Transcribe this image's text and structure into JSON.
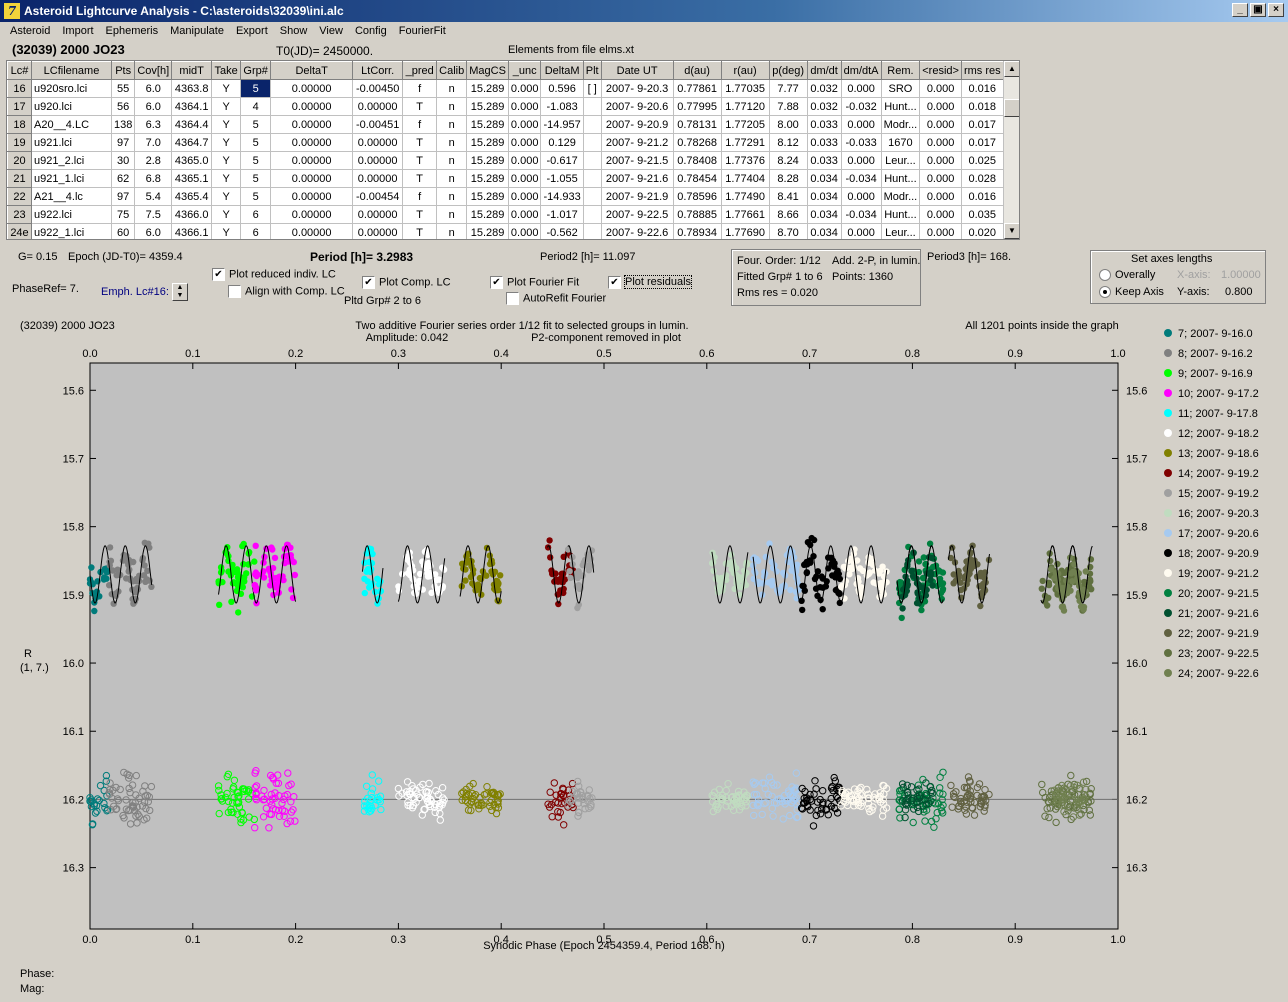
{
  "window": {
    "title": "Asteroid Lightcurve Analysis - C:\\asteroids\\32039\\ini.alc",
    "icon_letter": "7",
    "minimize": "_",
    "restore": "▣",
    "close": "×"
  },
  "menu": [
    "Asteroid",
    "Import",
    "Ephemeris",
    "Manipulate",
    "Export",
    "Show",
    "View",
    "Config",
    "FourierFit"
  ],
  "header": {
    "object": "(32039) 2000 JO23",
    "t0": "T0(JD)= 2450000.",
    "elements": "Elements from file elms.xt"
  },
  "table": {
    "columns": [
      "Lc#",
      "LCfilename",
      "Pts",
      "Cov[h]",
      "midT",
      "Take",
      "Grp#",
      "DeltaT",
      "LtCorr.",
      "_pred",
      "Calib",
      "MagCS",
      "_unc",
      "DeltaM",
      "Plt",
      "Date UT",
      "d(au)",
      "r(au)",
      "p(deg)",
      "dm/dt",
      "dm/dtA",
      "Rem.",
      "<resid>",
      "rms res"
    ],
    "rows": [
      [
        "16",
        "u920sro.lci",
        "55",
        "6.0",
        "4363.8",
        "Y",
        "5",
        "0.00000",
        "-0.00450",
        "f",
        "n",
        "15.289",
        "0.000",
        "0.596",
        "[ ]",
        "2007- 9-20.3",
        "0.77861",
        "1.77035",
        "7.77",
        "0.032",
        "0.000",
        "SRO",
        "0.000",
        "0.016"
      ],
      [
        "17",
        "u920.lci",
        "56",
        "6.0",
        "4364.1",
        "Y",
        "4",
        "0.00000",
        "0.00000",
        "T",
        "n",
        "15.289",
        "0.000",
        "-1.083",
        "",
        "2007- 9-20.6",
        "0.77995",
        "1.77120",
        "7.88",
        "0.032",
        "-0.032",
        "Hunt...",
        "0.000",
        "0.018"
      ],
      [
        "18",
        "A20__4.LC",
        "138",
        "6.3",
        "4364.4",
        "Y",
        "5",
        "0.00000",
        "-0.00451",
        "f",
        "n",
        "15.289",
        "0.000",
        "-14.957",
        "",
        "2007- 9-20.9",
        "0.78131",
        "1.77205",
        "8.00",
        "0.033",
        "0.000",
        "Modr...",
        "0.000",
        "0.017"
      ],
      [
        "19",
        "u921.lci",
        "97",
        "7.0",
        "4364.7",
        "Y",
        "5",
        "0.00000",
        "0.00000",
        "T",
        "n",
        "15.289",
        "0.000",
        "0.129",
        "",
        "2007- 9-21.2",
        "0.78268",
        "1.77291",
        "8.12",
        "0.033",
        "-0.033",
        "1670",
        "0.000",
        "0.017"
      ],
      [
        "20",
        "u921_2.lci",
        "30",
        "2.8",
        "4365.0",
        "Y",
        "5",
        "0.00000",
        "0.00000",
        "T",
        "n",
        "15.289",
        "0.000",
        "-0.617",
        "",
        "2007- 9-21.5",
        "0.78408",
        "1.77376",
        "8.24",
        "0.033",
        "0.000",
        "Leur...",
        "0.000",
        "0.025"
      ],
      [
        "21",
        "u921_1.lci",
        "62",
        "6.8",
        "4365.1",
        "Y",
        "5",
        "0.00000",
        "0.00000",
        "T",
        "n",
        "15.289",
        "0.000",
        "-1.055",
        "",
        "2007- 9-21.6",
        "0.78454",
        "1.77404",
        "8.28",
        "0.034",
        "-0.034",
        "Hunt...",
        "0.000",
        "0.028"
      ],
      [
        "22",
        "A21__4.lc",
        "97",
        "5.4",
        "4365.4",
        "Y",
        "5",
        "0.00000",
        "-0.00454",
        "f",
        "n",
        "15.289",
        "0.000",
        "-14.933",
        "",
        "2007- 9-21.9",
        "0.78596",
        "1.77490",
        "8.41",
        "0.034",
        "0.000",
        "Modr...",
        "0.000",
        "0.016"
      ],
      [
        "23",
        "u922.lci",
        "75",
        "7.5",
        "4366.0",
        "Y",
        "6",
        "0.00000",
        "0.00000",
        "T",
        "n",
        "15.289",
        "0.000",
        "-1.017",
        "",
        "2007- 9-22.5",
        "0.78885",
        "1.77661",
        "8.66",
        "0.034",
        "-0.034",
        "Hunt...",
        "0.000",
        "0.035"
      ],
      [
        "24e",
        "u922_1.lci",
        "60",
        "6.0",
        "4366.1",
        "Y",
        "6",
        "0.00000",
        "0.00000",
        "T",
        "n",
        "15.289",
        "0.000",
        "-0.562",
        "",
        "2007- 9-22.6",
        "0.78934",
        "1.77690",
        "8.70",
        "0.034",
        "0.000",
        "Leur...",
        "0.000",
        "0.020"
      ]
    ]
  },
  "params": {
    "g": "G= 0.15",
    "epoch": "Epoch (JD-T0)= 4359.4",
    "period": "Period [h]= 3.2983",
    "period2": "Period2 [h]= 11.097",
    "period3": "Period3 [h]= 168.",
    "phase_ref": "PhaseRef= 7.",
    "emph": "Emph. Lc#16:",
    "plot_reduced": "Plot reduced indiv. LC",
    "align": "Align with Comp. LC",
    "plot_comp": "Plot Comp. LC",
    "pltd_grp": "Pltd Grp#  2  to  6",
    "plot_fourier": "Plot Fourier Fit",
    "autorefit": "AutoRefit Fourier",
    "plot_residuals": "Plot residuals",
    "check": "✔"
  },
  "fourier_info": {
    "order": "Four. Order:  1/12",
    "add": "Add. 2-P, in lumin.",
    "fitted": "Fitted Grp# 1 to 6",
    "points": "Points: 1360",
    "rms": "Rms res     = 0.020"
  },
  "axes_box": {
    "title": "Set axes lengths",
    "overally": "Overally",
    "keep": "Keep Axis",
    "xaxis_label": "X-axis:",
    "xaxis_val": "1.00000",
    "yaxis_label": "Y-axis:",
    "yaxis_val": "0.800"
  },
  "chart_data": {
    "type": "scatter",
    "object_label": "(32039) 2000 JO23",
    "title": "Two additive Fourier series order 1/12 fit to selected groups in lumin.",
    "amplitude": "Amplitude: 0.042",
    "p2note": "P2-component removed in plot",
    "points_note": "All 1201 points inside the graph",
    "xlabel": "Synodic Phase (Epoch 2454359.4, Period 168. h)",
    "ylabel": "R",
    "ylabel2": "(1, 7.)",
    "xlim": [
      0,
      1
    ],
    "ylim": [
      15.56,
      16.39
    ],
    "y_inverted": true,
    "x_ticks": [
      "0.0",
      "0.1",
      "0.2",
      "0.3",
      "0.4",
      "0.5",
      "0.6",
      "0.7",
      "0.8",
      "0.9",
      "1.0"
    ],
    "y_ticks": [
      "15.6",
      "15.7",
      "15.8",
      "15.9",
      "16.0",
      "16.1",
      "16.2",
      "16.3"
    ],
    "curve_level": 15.87,
    "residual_level": 16.2,
    "series": [
      {
        "name": "7; 2007- 9-16.0",
        "color": "#007b7b",
        "x": [
          0.0,
          0.018
        ],
        "mag": 15.88,
        "spread": 0.05
      },
      {
        "name": "8; 2007- 9-16.2",
        "color": "#808080",
        "x": [
          0.018,
          0.06
        ],
        "mag": 15.87,
        "spread": 0.05
      },
      {
        "name": "9; 2007- 9-16.9",
        "color": "#00ff00",
        "x": [
          0.125,
          0.16
        ],
        "mag": 15.87,
        "spread": 0.05
      },
      {
        "name": "10; 2007- 9-17.2",
        "color": "#ff00ff",
        "x": [
          0.16,
          0.2
        ],
        "mag": 15.86,
        "spread": 0.06
      },
      {
        "name": "11; 2007- 9-17.8",
        "color": "#00ffff",
        "x": [
          0.265,
          0.285
        ],
        "mag": 15.87,
        "spread": 0.05
      },
      {
        "name": "12; 2007- 9-18.2",
        "color": "#ffffff",
        "x": [
          0.3,
          0.345
        ],
        "mag": 15.87,
        "spread": 0.04
      },
      {
        "name": "13; 2007- 9-18.6",
        "color": "#808000",
        "x": [
          0.36,
          0.4
        ],
        "mag": 15.87,
        "spread": 0.03
      },
      {
        "name": "14; 2007- 9-19.2",
        "color": "#800000",
        "x": [
          0.445,
          0.47
        ],
        "mag": 15.87,
        "spread": 0.05
      },
      {
        "name": "15; 2007- 9-19.2",
        "color": "#a0a0a0",
        "x": [
          0.465,
          0.49
        ],
        "mag": 15.87,
        "spread": 0.04
      },
      {
        "name": "16; 2007- 9-20.3",
        "color": "#c0dcc0",
        "x": [
          0.605,
          0.64
        ],
        "mag": 15.87,
        "spread": 0.03
      },
      {
        "name": "17; 2007- 9-20.6",
        "color": "#a6caf0",
        "x": [
          0.645,
          0.69
        ],
        "mag": 15.87,
        "spread": 0.05
      },
      {
        "name": "18; 2007- 9-20.9",
        "color": "#000000",
        "x": [
          0.69,
          0.73
        ],
        "mag": 15.87,
        "spread": 0.05
      },
      {
        "name": "19; 2007- 9-21.2",
        "color": "#fffbf0",
        "x": [
          0.73,
          0.775
        ],
        "mag": 15.87,
        "spread": 0.04
      },
      {
        "name": "20; 2007- 9-21.5",
        "color": "#008040",
        "x": [
          0.785,
          0.83
        ],
        "mag": 15.87,
        "spread": 0.05
      },
      {
        "name": "21; 2007- 9-21.6",
        "color": "#005030",
        "x": [
          0.79,
          0.82
        ],
        "mag": 15.88,
        "spread": 0.04
      },
      {
        "name": "22; 2007- 9-21.9",
        "color": "#606040",
        "x": [
          0.835,
          0.875
        ],
        "mag": 15.87,
        "spread": 0.04
      },
      {
        "name": "23; 2007- 9-22.5",
        "color": "#607040",
        "x": [
          0.925,
          0.975
        ],
        "mag": 15.88,
        "spread": 0.05
      },
      {
        "name": "24; 2007- 9-22.6",
        "color": "#708050",
        "x": [
          0.935,
          0.97
        ],
        "mag": 15.88,
        "spread": 0.04
      }
    ]
  },
  "status": {
    "phase": "Phase:",
    "mag": "Mag:"
  }
}
